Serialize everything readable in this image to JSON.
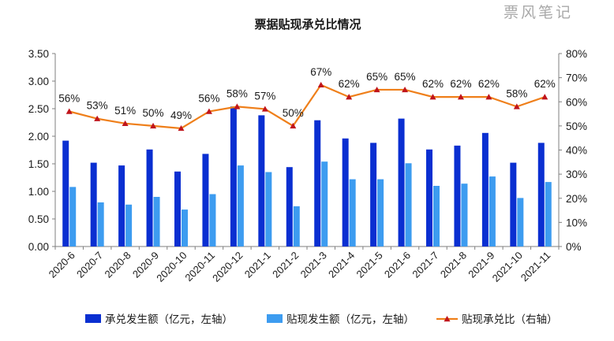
{
  "watermark": "票风笔记",
  "colors": {
    "bar1": "#0a2fd1",
    "bar2": "#3d9cf0",
    "line": "#ef7f1a",
    "marker": "#c0141b",
    "axis": "#7f7f7f"
  },
  "chart_data": {
    "type": "bar",
    "title": "票据贴现承兑比情况",
    "categories": [
      "2020-6",
      "2020-7",
      "2020-8",
      "2020-9",
      "2020-10",
      "2020-11",
      "2020-12",
      "2021-1",
      "2021-2",
      "2021-3",
      "2021-4",
      "2021-5",
      "2021-6",
      "2021-7",
      "2021-8",
      "2021-9",
      "2021-10",
      "2021-11"
    ],
    "y_left": {
      "range": [
        0,
        3.5
      ],
      "ticks": [
        "0.00",
        "0.50",
        "1.00",
        "1.50",
        "2.00",
        "2.50",
        "3.00",
        "3.50"
      ]
    },
    "y_right": {
      "range": [
        0,
        80
      ],
      "ticks": [
        "0%",
        "10%",
        "20%",
        "30%",
        "40%",
        "50%",
        "60%",
        "70%",
        "80%"
      ]
    },
    "grid": false,
    "legend_position": "bottom",
    "series": [
      {
        "name": "承兑发生额（亿元，左轴）",
        "type": "bar",
        "axis": "left",
        "values": [
          1.92,
          1.52,
          1.47,
          1.76,
          1.36,
          1.68,
          2.54,
          2.38,
          1.44,
          2.29,
          1.96,
          1.88,
          2.32,
          1.76,
          1.83,
          2.06,
          1.52,
          1.88
        ]
      },
      {
        "name": "贴现发生额（亿元，左轴）",
        "type": "bar",
        "axis": "left",
        "values": [
          1.08,
          0.8,
          0.76,
          0.9,
          0.67,
          0.95,
          1.47,
          1.35,
          0.73,
          1.54,
          1.22,
          1.22,
          1.51,
          1.1,
          1.14,
          1.27,
          0.88,
          1.17
        ]
      },
      {
        "name": "贴现承兑比（右轴）",
        "type": "line",
        "axis": "right",
        "values": [
          56,
          53,
          51,
          50,
          49,
          56,
          58,
          57,
          50,
          67,
          62,
          65,
          65,
          62,
          62,
          62,
          58,
          62
        ],
        "labels": [
          "56%",
          "53%",
          "51%",
          "50%",
          "49%",
          "56%",
          "58%",
          "57%",
          "50%",
          "67%",
          "62%",
          "65%",
          "65%",
          "62%",
          "62%",
          "62%",
          "58%",
          "62%"
        ]
      }
    ]
  }
}
